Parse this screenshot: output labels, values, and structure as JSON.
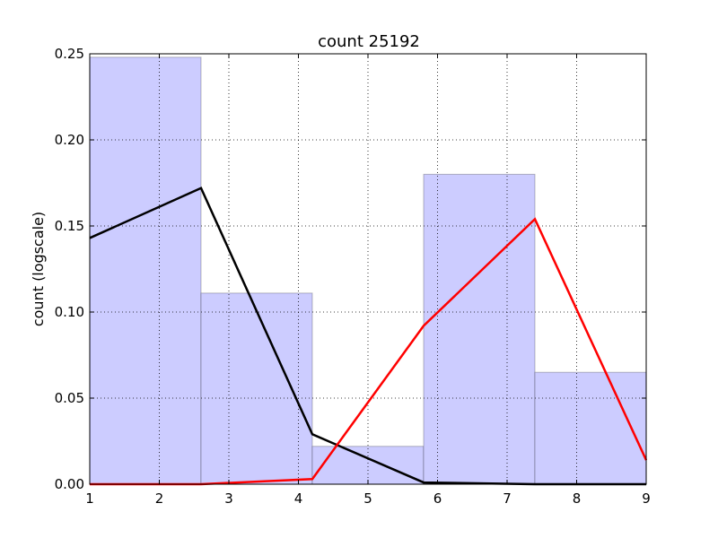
{
  "chart_data": {
    "type": "bar",
    "title": "count 25192",
    "xlabel": "",
    "ylabel": "count (logscale)",
    "xlim": [
      1,
      9
    ],
    "ylim": [
      0,
      0.25
    ],
    "grid": true,
    "xticks": [
      1,
      2,
      3,
      4,
      5,
      6,
      7,
      8,
      9
    ],
    "yticks": [
      0.0,
      0.05,
      0.1,
      0.15,
      0.2,
      0.25
    ],
    "ytick_labels": [
      "0.00",
      "0.05",
      "0.10",
      "0.15",
      "0.20",
      "0.25"
    ],
    "bar_color": "#ccccff",
    "bins": [
      {
        "x0": 1.0,
        "x1": 2.6,
        "value": 0.248
      },
      {
        "x0": 2.6,
        "x1": 4.2,
        "value": 0.111
      },
      {
        "x0": 4.2,
        "x1": 5.8,
        "value": 0.022
      },
      {
        "x0": 5.8,
        "x1": 7.4,
        "value": 0.18
      },
      {
        "x0": 7.4,
        "x1": 9.0,
        "value": 0.065
      }
    ],
    "series": [
      {
        "name": "black-line",
        "color": "#000000",
        "x": [
          1.0,
          2.6,
          4.2,
          5.8,
          7.4,
          9.0
        ],
        "values": [
          0.143,
          0.172,
          0.029,
          0.001,
          0.0,
          0.0
        ]
      },
      {
        "name": "red-line",
        "color": "#ff0000",
        "x": [
          1.0,
          2.6,
          4.2,
          5.8,
          7.4,
          9.0
        ],
        "values": [
          0.0,
          0.0,
          0.003,
          0.092,
          0.154,
          0.014
        ]
      }
    ]
  }
}
